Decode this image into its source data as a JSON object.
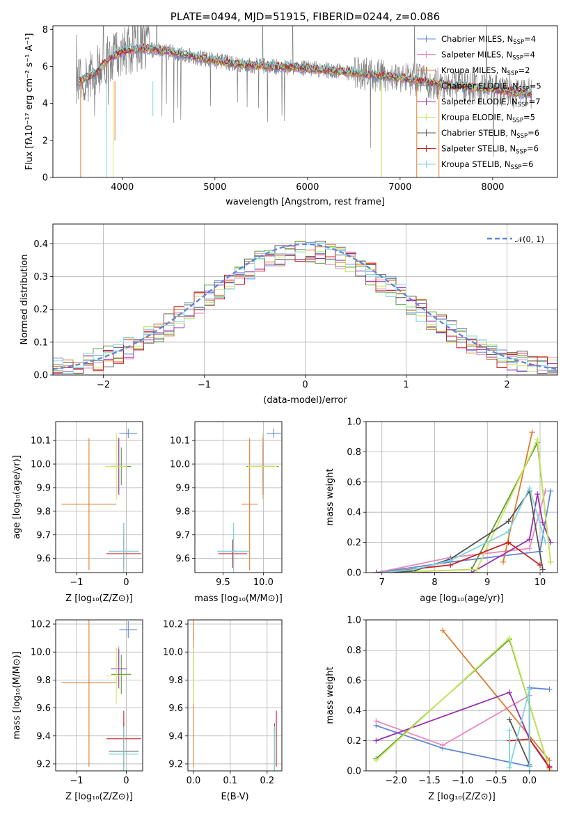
{
  "chart_data": [
    {
      "id": "spectrum",
      "type": "line",
      "title": "PLATE=0494, MJD=51915, FIBERID=0244, z=0.086",
      "xlabel": "wavelength [Angstrom, rest frame]",
      "ylabel": "Flux [fλ10⁻¹⁷ erg cm⁻² s⁻¹ A⁻¹]",
      "xlim": [
        3250,
        8700
      ],
      "ylim": [
        0,
        8.2
      ],
      "xticks": [
        4000,
        5000,
        6000,
        7000,
        8000
      ],
      "yticks": [
        0,
        2,
        4,
        6,
        8
      ],
      "data_curve": {
        "x": [
          3500,
          3700,
          3850,
          4000,
          4200,
          4500,
          4800,
          5000,
          5300,
          5600,
          6000,
          6300,
          6600,
          6900,
          7200,
          7500,
          7800,
          8100,
          8400
        ],
        "y": [
          5.1,
          5.6,
          6.4,
          6.8,
          7.0,
          6.8,
          6.5,
          6.3,
          6.1,
          6.0,
          5.9,
          5.75,
          5.6,
          5.45,
          5.25,
          5.0,
          4.85,
          4.7,
          4.5
        ]
      },
      "series": [
        {
          "name": "Chabrier MILES, N_SSP=4",
          "color": "#5f88d8"
        },
        {
          "name": "Salpeter MILES, N_SSP=4",
          "color": "#e889be"
        },
        {
          "name": "Kroupa MILES, N_SSP=2",
          "color": "#e07b2c"
        },
        {
          "name": "Chabrier ELODIE, N_SSP=5",
          "color": "#5e9a3a"
        },
        {
          "name": "Salpeter ELODIE, N_SSP=7",
          "color": "#9a30b0"
        },
        {
          "name": "Kroupa ELODIE, N_SSP=5",
          "color": "#c9e85a"
        },
        {
          "name": "Chabrier STELIB, N_SSP=6",
          "color": "#555555"
        },
        {
          "name": "Salpeter STELIB, N_SSP=6",
          "color": "#cc2222"
        },
        {
          "name": "Kroupa STELIB, N_SSP=6",
          "color": "#7fd6dd"
        }
      ],
      "legend": [
        {
          "prefix": "Chabrier MILES, N",
          "sub": "SSP",
          "suffix": "=4",
          "color": "#5f88d8"
        },
        {
          "prefix": "Salpeter MILES, N",
          "sub": "SSP",
          "suffix": "=4",
          "color": "#e889be"
        },
        {
          "prefix": "Kroupa MILES, N",
          "sub": "SSP",
          "suffix": "=2",
          "color": "#e07b2c"
        },
        {
          "prefix": "Chabrier ELODIE, N",
          "sub": "SSP",
          "suffix": "=5",
          "color": "#5e9a3a"
        },
        {
          "prefix": "Salpeter ELODIE, N",
          "sub": "SSP",
          "suffix": "=7",
          "color": "#9a30b0"
        },
        {
          "prefix": "Kroupa ELODIE, N",
          "sub": "SSP",
          "suffix": "=5",
          "color": "#c9e85a"
        },
        {
          "prefix": "Chabrier STELIB, N",
          "sub": "SSP",
          "suffix": "=6",
          "color": "#555555"
        },
        {
          "prefix": "Salpeter STELIB, N",
          "sub": "SSP",
          "suffix": "=6",
          "color": "#cc2222"
        },
        {
          "prefix": "Kroupa STELIB, N",
          "sub": "SSP",
          "suffix": "=6",
          "color": "#7fd6dd"
        }
      ],
      "legend_position": "upper right",
      "grid": false
    },
    {
      "id": "residuals",
      "type": "line",
      "xlabel": "(data-model)/error",
      "ylabel": "Normed distribution",
      "xlim": [
        -2.5,
        2.5
      ],
      "ylim": [
        0,
        0.46
      ],
      "xticks": [
        -2,
        -1,
        0,
        1,
        2
      ],
      "yticks": [
        0.0,
        0.1,
        0.2,
        0.3,
        0.4
      ],
      "bin_width": 0.1,
      "reference_curve": {
        "name": "𝒩(0, 1)",
        "mean": 0,
        "sigma": 1,
        "color": "#5f88d8",
        "style": "dashed"
      },
      "legend_position": "upper right",
      "grid": true
    },
    {
      "id": "age_vs_Z",
      "type": "scatter",
      "xlabel": "Z [log₁₀(Z/Z⊙)]",
      "ylabel": "age  [log₁₀(age/yr)]",
      "xlim": [
        -1.42,
        0.33
      ],
      "ylim": [
        9.54,
        10.18
      ],
      "xticks": [
        -1,
        0
      ],
      "yticks": [
        9.6,
        9.7,
        9.8,
        9.9,
        10.0,
        10.1
      ],
      "grid": true
    },
    {
      "id": "age_vs_mass",
      "type": "scatter",
      "xlabel": "mass [log₁₀(M/M⊙)]",
      "xlim": [
        9.15,
        10.23
      ],
      "ylim": [
        9.54,
        10.18
      ],
      "xticks": [
        9.5,
        10.0
      ],
      "yticks": [
        9.6,
        9.7,
        9.8,
        9.9,
        10.0,
        10.1
      ],
      "grid": true
    },
    {
      "id": "weight_vs_age",
      "type": "line",
      "xlabel": "age  [log₁₀(age/yr)]",
      "ylabel": "mass weight",
      "xlim": [
        6.7,
        10.33
      ],
      "ylim": [
        0,
        1.0
      ],
      "xticks": [
        7,
        8,
        9,
        10
      ],
      "yticks": [
        0.0,
        0.2,
        0.4,
        0.6,
        0.8,
        1.0
      ],
      "series": [
        {
          "name": "Chabrier MILES",
          "color": "#5f88d8",
          "x": [
            6.9,
            8.3,
            10.0,
            10.2
          ],
          "y": [
            0.0,
            0.07,
            0.14,
            0.54
          ]
        },
        {
          "name": "Salpeter MILES",
          "color": "#e889be",
          "x": [
            6.9,
            8.3,
            9.8,
            10.1
          ],
          "y": [
            0.0,
            0.1,
            0.16,
            0.54
          ]
        },
        {
          "name": "Kroupa MILES",
          "color": "#e07b2c",
          "x": [
            9.3,
            9.85
          ],
          "y": [
            0.07,
            0.93
          ]
        },
        {
          "name": "Chabrier ELODIE",
          "color": "#5e9a3a",
          "x": [
            7.0,
            8.7,
            9.95,
            10.2
          ],
          "y": [
            0.0,
            0.02,
            0.86,
            0.07
          ]
        },
        {
          "name": "Salpeter ELODIE",
          "color": "#9a30b0",
          "x": [
            7.0,
            8.7,
            9.8,
            9.95,
            10.05,
            10.2
          ],
          "y": [
            0.0,
            0.0,
            0.22,
            0.52,
            0.33,
            0.2
          ]
        },
        {
          "name": "Kroupa ELODIE",
          "color": "#c9e85a",
          "x": [
            7.0,
            8.8,
            9.95,
            10.2
          ],
          "y": [
            0.0,
            0.02,
            0.88,
            0.07
          ]
        },
        {
          "name": "Chabrier STELIB",
          "color": "#555555",
          "x": [
            6.9,
            7.6,
            8.3,
            9.4,
            9.8,
            10.05
          ],
          "y": [
            0.0,
            0.01,
            0.09,
            0.34,
            0.54,
            0.02
          ]
        },
        {
          "name": "Salpeter STELIB",
          "color": "#cc2222",
          "x": [
            7.0,
            8.3,
            9.4,
            10.0
          ],
          "y": [
            0.0,
            0.05,
            0.2,
            0.05
          ]
        },
        {
          "name": "Kroupa STELIB",
          "color": "#7fd6dd",
          "x": [
            7.0,
            7.6,
            8.3,
            9.4,
            9.8,
            10.1
          ],
          "y": [
            0.0,
            0.02,
            0.08,
            0.27,
            0.56,
            0.2
          ]
        }
      ],
      "grid": true
    },
    {
      "id": "mass_vs_Z",
      "type": "scatter",
      "xlabel": "Z [log₁₀(Z/Z⊙)]",
      "ylabel": "mass [log₁₀(M/M⊙)]",
      "xlim": [
        -1.42,
        0.33
      ],
      "ylim": [
        9.15,
        10.23
      ],
      "xticks": [
        -1,
        0
      ],
      "yticks": [
        9.2,
        9.4,
        9.6,
        9.8,
        10.0,
        10.2
      ],
      "grid": true
    },
    {
      "id": "mass_vs_ebv",
      "type": "scatter",
      "xlabel": "E(B-V)",
      "xlim": [
        -0.015,
        0.24
      ],
      "ylim": [
        9.15,
        10.23
      ],
      "xticks": [
        0.0,
        0.1,
        0.2
      ],
      "yticks": [
        9.2,
        9.4,
        9.6,
        9.8,
        10.0,
        10.2
      ],
      "grid": true
    },
    {
      "id": "weight_vs_Z",
      "type": "line",
      "xlabel": "Z [log₁₀(Z/Z⊙)]",
      "ylabel": "mass weight",
      "xlim": [
        -2.45,
        0.42
      ],
      "ylim": [
        0,
        1.0
      ],
      "xticks": [
        -2.0,
        -1.5,
        -1.0,
        -0.5,
        0.0
      ],
      "yticks": [
        0.0,
        0.2,
        0.4,
        0.6,
        0.8,
        1.0
      ],
      "series": [
        {
          "name": "Chabrier MILES",
          "color": "#5f88d8",
          "x": [
            -2.3,
            -1.3,
            0.0,
            0.0,
            0.3
          ],
          "y": [
            0.3,
            0.15,
            0.03,
            0.55,
            0.54
          ]
        },
        {
          "name": "Salpeter MILES",
          "color": "#e889be",
          "x": [
            -2.3,
            -1.3,
            0.0,
            0.0
          ],
          "y": [
            0.33,
            0.17,
            0.5,
            0.0
          ]
        },
        {
          "name": "Kroupa MILES",
          "color": "#e07b2c",
          "x": [
            -1.3,
            0.3
          ],
          "y": [
            0.93,
            0.07
          ]
        },
        {
          "name": "Chabrier ELODIE",
          "color": "#5e9a3a",
          "x": [
            -2.3,
            -0.3,
            0.3
          ],
          "y": [
            0.08,
            0.87,
            0.01
          ]
        },
        {
          "name": "Salpeter ELODIE",
          "color": "#9a30b0",
          "x": [
            -2.3,
            -0.3,
            0.0,
            0.3
          ],
          "y": [
            0.2,
            0.52,
            0.21,
            0.03
          ]
        },
        {
          "name": "Kroupa ELODIE",
          "color": "#c9e85a",
          "x": [
            -2.3,
            -0.3,
            0.3
          ],
          "y": [
            0.07,
            0.88,
            0.01
          ]
        },
        {
          "name": "Chabrier STELIB",
          "color": "#555555",
          "x": [
            -0.3,
            0.0,
            0.0
          ],
          "y": [
            0.34,
            0.04,
            0.54
          ]
        },
        {
          "name": "Salpeter STELIB",
          "color": "#cc2222",
          "x": [
            -0.3,
            0.0,
            0.3
          ],
          "y": [
            0.2,
            0.21,
            0.02
          ]
        },
        {
          "name": "Kroupa STELIB",
          "color": "#7fd6dd",
          "x": [
            -0.3,
            -0.3,
            0.0,
            0.0
          ],
          "y": [
            0.27,
            0.02,
            0.54,
            0.0
          ]
        }
      ],
      "grid": true
    }
  ],
  "error_bars": [
    {
      "name": "Chabrier MILES",
      "color": "#5f88d8",
      "Z": 0.04,
      "Zerr": 0.18,
      "age": 10.13,
      "ageErr": 0.02,
      "mass": 10.13,
      "massHalf": 0.09,
      "mass2": 10.16,
      "mass2Half": 0.06,
      "ebv": 0.0
    },
    {
      "name": "Salpeter MILES",
      "color": "#e889be",
      "Z": -0.15,
      "Zerr": 0.0,
      "age": 9.99,
      "ageErr": 0.12,
      "mass": 10.0,
      "massHalf": 0.1,
      "mass2": 9.97,
      "mass2Half": 0.07,
      "ebv": 0.0
    },
    {
      "name": "Kroupa MILES",
      "color": "#e07b2c",
      "Z": -0.75,
      "Zerr": 0.55,
      "age": 9.83,
      "ageErr": 0.28,
      "mass": 9.83,
      "massHalf": 0.1,
      "mass2": 9.78,
      "mass2Half": 0.6,
      "ebv": 0.0
    },
    {
      "name": "Chabrier ELODIE",
      "color": "#5e9a3a",
      "Z": -0.1,
      "Zerr": 0.2,
      "age": 9.99,
      "ageErr": 0.08,
      "mass": 9.99,
      "massHalf": 0.2,
      "mass2": 9.84,
      "mass2Half": 0.14,
      "ebv": 0.0
    },
    {
      "name": "Salpeter ELODIE",
      "color": "#9a30b0",
      "Z": -0.15,
      "Zerr": 0.16,
      "age": 9.99,
      "ageErr": 0.12,
      "mass": 9.99,
      "massHalf": 0.15,
      "mass2": 9.88,
      "mass2Half": 0.14,
      "ebv": 0.0
    },
    {
      "name": "Kroupa ELODIE",
      "color": "#c9e85a",
      "Z": -0.2,
      "Zerr": 0.22,
      "age": 9.99,
      "ageErr": 0.14,
      "mass": 9.99,
      "massHalf": 0.18,
      "mass2": 9.83,
      "mass2Half": 0.2,
      "ebv": 0.0
    },
    {
      "name": "Chabrier STELIB",
      "color": "#555555",
      "Z": -0.05,
      "Zerr": 0.3,
      "age": 9.63,
      "ageErr": 0.12,
      "mass": 9.63,
      "massHalf": 0.2,
      "mass2": 9.29,
      "mass2Half": 0.2,
      "ebv": 0.22
    },
    {
      "name": "Salpeter STELIB",
      "color": "#cc2222",
      "Z": -0.05,
      "Zerr": 0.35,
      "age": 9.62,
      "ageErr": 0.06,
      "mass": 9.62,
      "massHalf": 0.18,
      "mass2": 9.38,
      "mass2Half": 0.2,
      "ebv": 0.225
    },
    {
      "name": "Kroupa STELIB",
      "color": "#7fd6dd",
      "Z": -0.05,
      "Zerr": 0.3,
      "age": 9.63,
      "ageErr": 0.12,
      "mass": 9.63,
      "massHalf": 0.2,
      "mass2": 9.27,
      "mass2Half": 0.2,
      "ebv": 0.22
    }
  ]
}
